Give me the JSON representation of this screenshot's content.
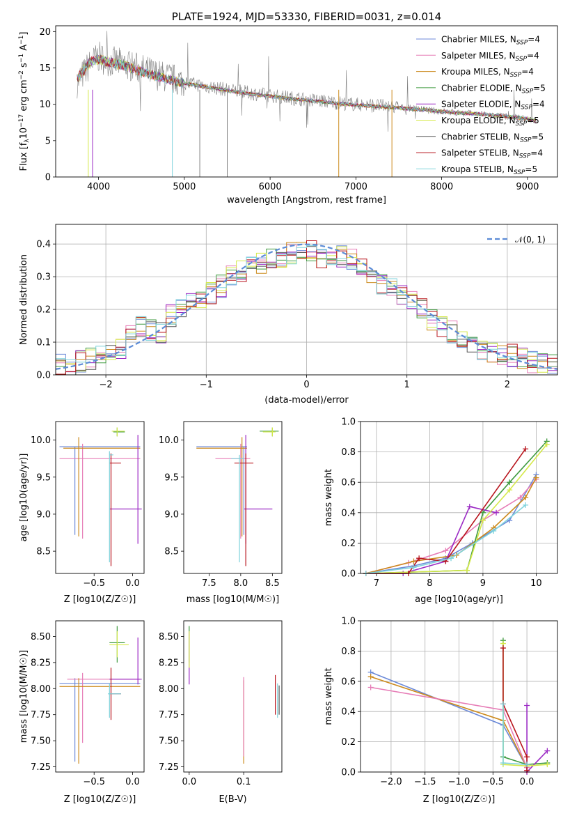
{
  "chart_data": [
    {
      "type": "line",
      "title": "PLATE=1924, MJD=53330, FIBERID=0031, z=0.014",
      "xlabel": "wavelength [Angstrom, rest frame]",
      "ylabel": "Flux [f_λ10^−17 erg cm^−2 s^−1 A^−1]",
      "xlim": [
        3500,
        9350
      ],
      "ylim": [
        0,
        20.8
      ],
      "xticks": [
        "4000",
        "5000",
        "6000",
        "7000",
        "8000",
        "9000"
      ],
      "yticks": [
        "0",
        "5",
        "10",
        "15",
        "20"
      ],
      "grid": false,
      "legend": "top-right",
      "observed": {
        "x": [
          3750,
          3900,
          4000,
          4100,
          4300,
          4500,
          4700,
          4860,
          5000,
          5200,
          5500,
          5800,
          6000,
          6300,
          6560,
          6800,
          7000,
          7500,
          8000,
          8500,
          9000,
          9100
        ],
        "y": [
          13.0,
          15.5,
          16.5,
          16.0,
          15.5,
          14.8,
          14.0,
          13.5,
          13.0,
          12.6,
          12.0,
          11.5,
          11.2,
          10.8,
          10.5,
          10.2,
          10.0,
          9.6,
          9.0,
          8.6,
          8.0,
          7.6
        ]
      },
      "series": [
        {
          "name": "Chabrier MILES, N_SSP=4",
          "color": "#6c8ad8"
        },
        {
          "name": "Salpeter MILES, N_SSP=4",
          "color": "#e67cb6"
        },
        {
          "name": "Kroupa MILES, N_SSP=4",
          "color": "#cc8a1c"
        },
        {
          "name": "Chabrier ELODIE, N_SSP=5",
          "color": "#3f9a3f"
        },
        {
          "name": "Salpeter ELODIE, N_SSP=4",
          "color": "#9b2ac4"
        },
        {
          "name": "Kroupa ELODIE, N_SSP=5",
          "color": "#d5e94a"
        },
        {
          "name": "Chabrier STELIB, N_SSP=5",
          "color": "#555555"
        },
        {
          "name": "Salpeter STELIB, N_SSP=4",
          "color": "#b8141c"
        },
        {
          "name": "Kroupa STELIB, N_SSP=5",
          "color": "#7fd3dc"
        }
      ],
      "model_x": [
        3750,
        3900,
        4000,
        4100,
        4300,
        4500,
        4700,
        4860,
        5000,
        5200,
        5500,
        5800,
        6000,
        6300,
        6560,
        6800,
        7000,
        7500,
        8000,
        8500,
        9000,
        9100
      ],
      "model_y": [
        13.5,
        15.8,
        16.2,
        15.9,
        15.3,
        14.5,
        13.8,
        13.3,
        12.9,
        12.5,
        11.9,
        11.4,
        11.1,
        10.7,
        10.4,
        10.1,
        9.9,
        9.5,
        9.0,
        8.6,
        8.0,
        7.7
      ]
    },
    {
      "type": "line",
      "xlabel": "(data-model)/error",
      "ylabel": "Normed distribution",
      "xlim": [
        -2.5,
        2.5
      ],
      "ylim": [
        0,
        0.46
      ],
      "xticks": [
        "−2",
        "−1",
        "0",
        "1",
        "2"
      ],
      "yticks": [
        "0.0",
        "0.1",
        "0.2",
        "0.3",
        "0.4"
      ],
      "grid": true,
      "legend": "top-right",
      "reference_label": "𝒩(0, 1)",
      "reference_color": "#5b8bd6",
      "bin_edges_start": -2.5,
      "bin_width": 0.1,
      "hist": [
        0.03,
        0.03,
        0.04,
        0.05,
        0.06,
        0.06,
        0.08,
        0.12,
        0.15,
        0.14,
        0.13,
        0.18,
        0.2,
        0.22,
        0.24,
        0.25,
        0.27,
        0.3,
        0.32,
        0.33,
        0.34,
        0.35,
        0.36,
        0.37,
        0.38,
        0.38,
        0.36,
        0.37,
        0.36,
        0.35,
        0.33,
        0.31,
        0.28,
        0.27,
        0.24,
        0.22,
        0.2,
        0.17,
        0.15,
        0.13,
        0.11,
        0.09,
        0.08,
        0.07,
        0.06,
        0.06,
        0.05,
        0.04,
        0.03,
        0.03
      ]
    },
    {
      "type": "scatter",
      "xlabel": "Z [log10(Z/Z☉)]",
      "ylabel": "age  [log10(age/yr)]",
      "xlim": [
        -1.0,
        0.15
      ],
      "ylim": [
        8.2,
        10.25
      ],
      "xticks": [
        "−0.5",
        "0.0"
      ],
      "yticks": [
        "8.5",
        "9.0",
        "9.5",
        "10.0"
      ],
      "grid": false
    },
    {
      "type": "scatter",
      "xlabel": "mass [log10(M/M☉)]",
      "ylabel": "",
      "xlim": [
        7.1,
        8.65
      ],
      "ylim": [
        8.2,
        10.25
      ],
      "xticks": [
        "7.5",
        "8.0",
        "8.5"
      ],
      "yticks": [
        "8.5",
        "9.0",
        "9.5",
        "10.0"
      ],
      "grid": false
    },
    {
      "type": "line",
      "xlabel": "age  [log10(age/yr)]",
      "ylabel": "mass weight",
      "xlim": [
        6.7,
        10.4
      ],
      "ylim": [
        0,
        1.0
      ],
      "xticks": [
        "7",
        "8",
        "9",
        "10"
      ],
      "yticks": [
        "0.0",
        "0.2",
        "0.4",
        "0.6",
        "0.8",
        "1.0"
      ],
      "grid": true,
      "series": [
        {
          "color": "#6c8ad8",
          "x": [
            6.8,
            7.7,
            8.3,
            8.8,
            9.5,
            10.0
          ],
          "y": [
            0.0,
            0.05,
            0.1,
            0.2,
            0.35,
            0.65
          ]
        },
        {
          "color": "#e67cb6",
          "x": [
            6.8,
            7.6,
            8.3,
            9.0,
            9.7,
            10.0
          ],
          "y": [
            0.0,
            0.07,
            0.15,
            0.35,
            0.5,
            0.62
          ]
        },
        {
          "color": "#cc8a1c",
          "x": [
            6.8,
            7.7,
            8.5,
            9.2,
            9.8,
            10.0
          ],
          "y": [
            0.0,
            0.08,
            0.12,
            0.3,
            0.5,
            0.63
          ]
        },
        {
          "color": "#3f9a3f",
          "x": [
            6.8,
            8.7,
            9.0,
            9.5,
            10.2
          ],
          "y": [
            0.0,
            0.02,
            0.4,
            0.6,
            0.87
          ]
        },
        {
          "color": "#9b2ac4",
          "x": [
            6.8,
            7.5,
            8.3,
            8.75,
            9.25
          ],
          "y": [
            0.0,
            0.0,
            0.08,
            0.44,
            0.4
          ]
        },
        {
          "color": "#d5e94a",
          "x": [
            6.8,
            8.7,
            9.0,
            9.5,
            10.2
          ],
          "y": [
            0.0,
            0.02,
            0.35,
            0.55,
            0.85
          ]
        },
        {
          "color": "#b8141c",
          "x": [
            6.8,
            7.6,
            7.8,
            8.3,
            9.8
          ],
          "y": [
            0.0,
            0.0,
            0.1,
            0.08,
            0.82
          ]
        },
        {
          "color": "#7fd3dc",
          "x": [
            6.8,
            7.7,
            8.4,
            9.2,
            9.8
          ],
          "y": [
            0.0,
            0.04,
            0.1,
            0.28,
            0.45
          ]
        }
      ]
    },
    {
      "type": "scatter",
      "xlabel": "Z [log10(Z/Z☉)]",
      "ylabel": "mass [log10(M/M☉)]",
      "xlim": [
        -1.0,
        0.15
      ],
      "ylim": [
        7.2,
        8.65
      ],
      "xticks": [
        "−0.5",
        "0.0"
      ],
      "yticks": [
        "7.25",
        "7.50",
        "7.75",
        "8.00",
        "8.25",
        "8.50"
      ],
      "grid": false
    },
    {
      "type": "scatter",
      "xlabel": "E(B-V)",
      "ylabel": "",
      "xlim": [
        -0.01,
        0.17
      ],
      "ylim": [
        7.2,
        8.65
      ],
      "xticks": [
        "0.0",
        "0.1"
      ],
      "yticks": [
        "7.25",
        "7.50",
        "7.75",
        "8.00",
        "8.25",
        "8.50"
      ],
      "grid": false
    },
    {
      "type": "line",
      "xlabel": "Z [log10(Z/Z☉)]",
      "ylabel": "mass weight",
      "xlim": [
        -2.45,
        0.45
      ],
      "ylim": [
        0,
        1.0
      ],
      "xticks": [
        "−2.0",
        "−1.5",
        "−1.0",
        "−0.5",
        "0.0"
      ],
      "yticks": [
        "0.0",
        "0.2",
        "0.4",
        "0.6",
        "0.8",
        "1.0"
      ],
      "grid": true,
      "series": [
        {
          "color": "#6c8ad8",
          "x": [
            -2.3,
            -0.35,
            0.0
          ],
          "y": [
            0.66,
            0.31,
            0.03
          ]
        },
        {
          "color": "#cc8a1c",
          "x": [
            -2.3,
            -0.35,
            0.0
          ],
          "y": [
            0.63,
            0.34,
            0.03
          ]
        },
        {
          "color": "#e67cb6",
          "x": [
            -2.3,
            -0.35,
            0.0
          ],
          "y": [
            0.56,
            0.41,
            0.03
          ]
        },
        {
          "color": "#3f9a3f",
          "x": [
            -0.35,
            -0.35,
            0.0,
            0.3
          ],
          "y": [
            0.87,
            0.1,
            0.05,
            0.06
          ]
        },
        {
          "color": "#9b2ac4",
          "x": [
            0.0,
            0.0,
            0.3
          ],
          "y": [
            0.44,
            0.0,
            0.14
          ]
        },
        {
          "color": "#d5e94a",
          "x": [
            -0.35,
            -0.35,
            0.0,
            0.3
          ],
          "y": [
            0.85,
            0.05,
            0.04,
            0.05
          ]
        },
        {
          "color": "#b8141c",
          "x": [
            -0.35,
            -0.35,
            0.0,
            0.0
          ],
          "y": [
            0.82,
            0.45,
            0.1,
            0.01
          ]
        },
        {
          "color": "#7fd3dc",
          "x": [
            -0.35,
            -0.35,
            0.0
          ],
          "y": [
            0.45,
            0.06,
            0.05
          ]
        }
      ]
    }
  ]
}
